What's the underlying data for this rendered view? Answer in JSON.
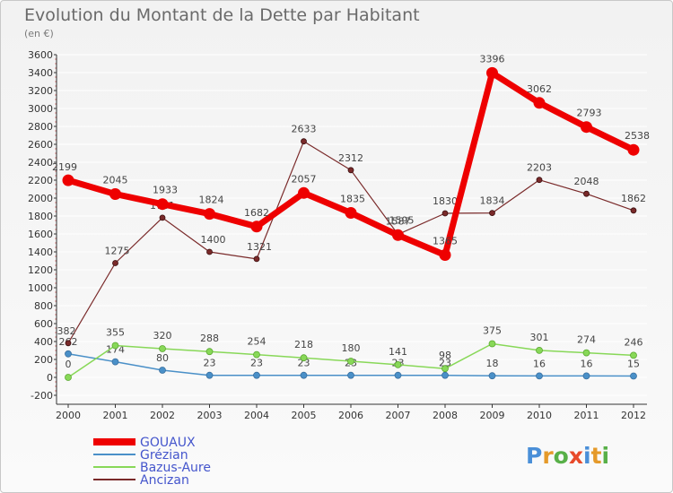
{
  "header": {
    "title": "Evolution du Montant de la Dette par Habitant",
    "subtitle": "(en €)"
  },
  "logo": {
    "text": "Proxiti"
  },
  "chart_data": {
    "type": "line",
    "title": "Evolution du Montant de la Dette par Habitant",
    "subtitle": "(en €)",
    "xlabel": "",
    "ylabel": "",
    "ylim": [
      -200,
      3600
    ],
    "yticks": [
      -200,
      0,
      200,
      400,
      600,
      800,
      1000,
      1200,
      1400,
      1600,
      1800,
      2000,
      2200,
      2400,
      2600,
      2800,
      3000,
      3200,
      3400,
      3600
    ],
    "categories": [
      "2000",
      "2001",
      "2002",
      "2003",
      "2004",
      "2005",
      "2006",
      "2007",
      "2008",
      "2009",
      "2010",
      "2011",
      "2012"
    ],
    "grid": true,
    "legend_position": "bottom-left",
    "series": [
      {
        "name": "GOUAUX",
        "color": "#ee0000",
        "values": [
          2199,
          2045,
          1933,
          1824,
          1682,
          2057,
          1835,
          1587,
          1365,
          3396,
          3062,
          2793,
          2538
        ]
      },
      {
        "name": "Grézian",
        "color": "#4a90c8",
        "values": [
          262,
          174,
          80,
          23,
          23,
          23,
          23,
          23,
          23,
          18,
          16,
          16,
          15
        ]
      },
      {
        "name": "Bazus-Aure",
        "color": "#88d858",
        "values": [
          0,
          355,
          320,
          288,
          254,
          218,
          180,
          141,
          98,
          375,
          301,
          274,
          246
        ]
      },
      {
        "name": "Ancizan",
        "color": "#7a2a2a",
        "values": [
          382,
          1275,
          1781,
          1400,
          1321,
          2633,
          2312,
          1595,
          1830,
          1834,
          2203,
          2048,
          1862
        ]
      }
    ]
  }
}
